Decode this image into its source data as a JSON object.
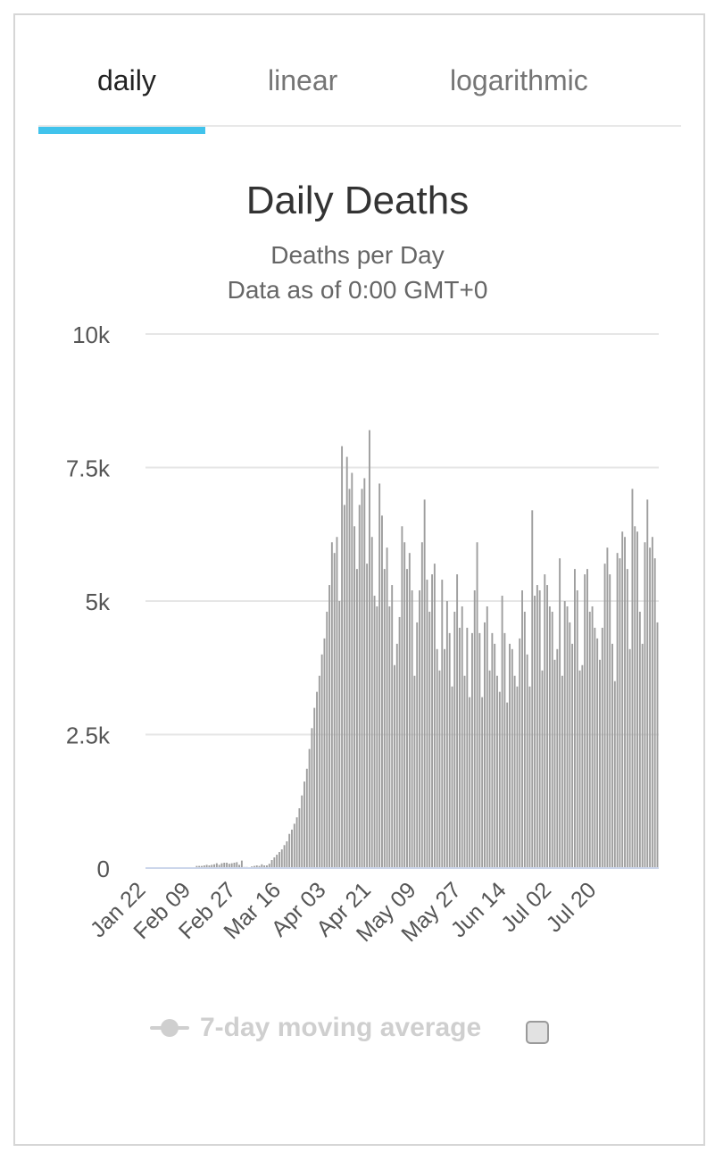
{
  "tabs": [
    {
      "label": "daily"
    },
    {
      "label": "linear"
    },
    {
      "label": "logarithmic"
    }
  ],
  "active_tab": 0,
  "legend": {
    "label": "7-day moving average"
  },
  "colors": {
    "accent": "#41c3ec",
    "bars": "#9e9e9e",
    "grid": "#e6e6e6",
    "legend": "#cfcfcf"
  },
  "chart_data": {
    "type": "bar",
    "title": "Daily Deaths",
    "subtitle": [
      "Deaths per Day",
      "Data as of 0:00 GMT+0"
    ],
    "xlabel": "",
    "ylabel": "",
    "ylim": [
      0,
      10000
    ],
    "yticks": [
      0,
      2500,
      5000,
      7500,
      10000
    ],
    "ytick_labels": [
      "0",
      "2.5k",
      "5k",
      "7.5k",
      "10k"
    ],
    "xtick_labels": [
      "Jan 22",
      "Feb 09",
      "Feb 27",
      "Mar 16",
      "Apr 03",
      "Apr 21",
      "May 09",
      "May 27",
      "Jun 14",
      "Jul 02",
      "Jul 20"
    ],
    "xtick_every_days": 18,
    "grid": true,
    "start": "Jan 22",
    "values": [
      0,
      0,
      0,
      0,
      0,
      0,
      0,
      0,
      0,
      0,
      0,
      0,
      0,
      0,
      0,
      0,
      0,
      0,
      0,
      0,
      40,
      40,
      40,
      50,
      60,
      50,
      60,
      70,
      90,
      60,
      90,
      100,
      100,
      80,
      90,
      100,
      110,
      60,
      140,
      20,
      20,
      10,
      30,
      40,
      50,
      40,
      70,
      50,
      50,
      80,
      150,
      200,
      250,
      300,
      350,
      430,
      500,
      640,
      720,
      830,
      950,
      1120,
      1360,
      1620,
      1860,
      2230,
      2620,
      3000,
      3300,
      3600,
      4000,
      4300,
      4800,
      5300,
      6100,
      5900,
      6200,
      5000,
      7900,
      6800,
      7700,
      7100,
      7400,
      6400,
      5600,
      6800,
      7100,
      7300,
      5700,
      8200,
      6200,
      5100,
      4900,
      7200,
      6600,
      5600,
      6000,
      4900,
      5300,
      3800,
      4200,
      4700,
      6400,
      6100,
      5600,
      5900,
      5200,
      3600,
      4600,
      5200,
      6100,
      6900,
      5400,
      4800,
      5500,
      5700,
      4100,
      3700,
      5400,
      4100,
      5000,
      4400,
      3400,
      4800,
      5500,
      4500,
      4900,
      3600,
      4500,
      3200,
      4400,
      5200,
      6100,
      4400,
      3200,
      4600,
      4900,
      3700,
      4400,
      4200,
      3600,
      3300,
      5100,
      4400,
      3100,
      4200,
      4100,
      3600,
      3400,
      4300,
      5200,
      4800,
      4000,
      3400,
      6700,
      5100,
      5300,
      5200,
      3700,
      5500,
      5300,
      4900,
      4800,
      3900,
      4100,
      5800,
      3600,
      5000,
      4900,
      4600,
      4200,
      5600,
      5200,
      3700,
      3800,
      5500,
      5600,
      4800,
      4900,
      4500,
      4300,
      3900,
      4500,
      5700,
      6000,
      5500,
      4200,
      3500,
      5900,
      5800,
      6300,
      6200,
      5600,
      4100,
      7100,
      6400,
      6300,
      4800,
      4200,
      6100,
      6900,
      6000,
      6200,
      5800,
      4600
    ]
  }
}
